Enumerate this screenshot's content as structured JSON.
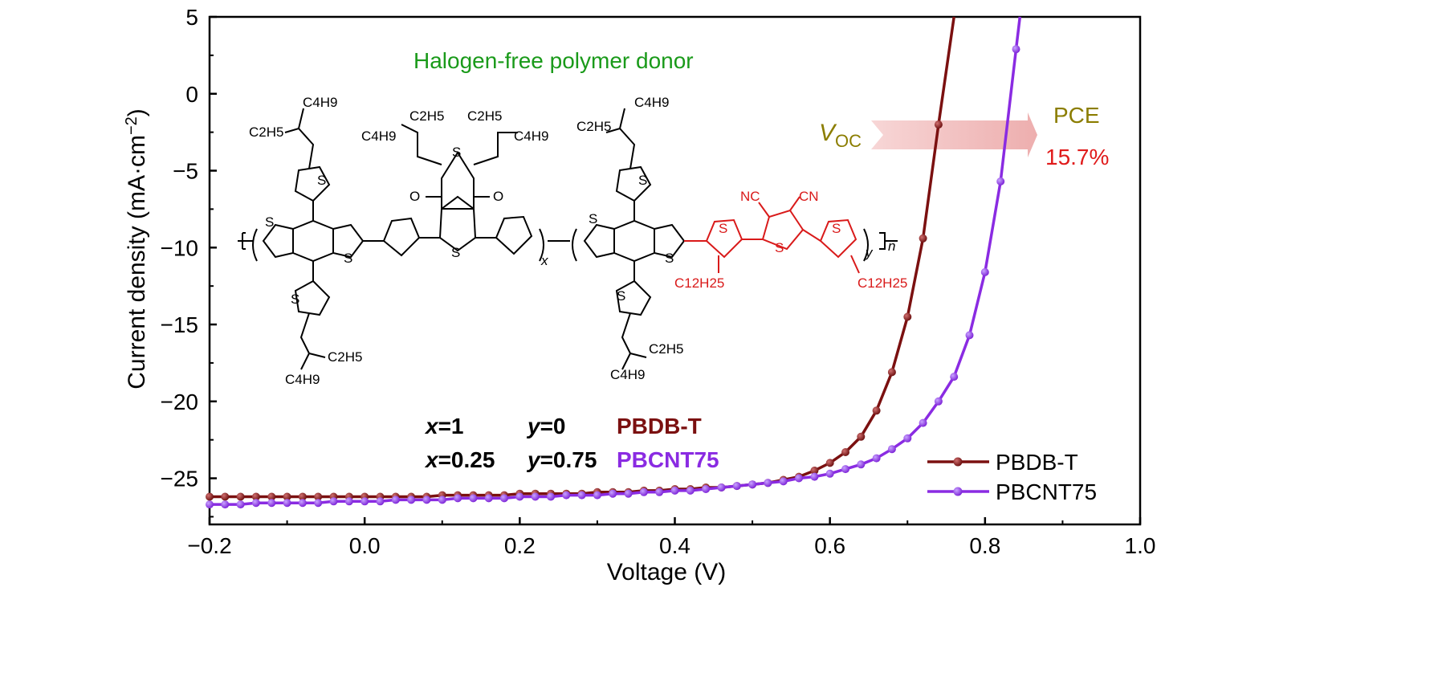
{
  "chart_data": {
    "type": "line",
    "xlabel": "Voltage (V)",
    "ylabel_main": "Current density (mA·cm",
    "ylabel_sup": "−2",
    "ylabel_close": ")",
    "xlim": [
      -0.2,
      1.0
    ],
    "ylim": [
      -28,
      5
    ],
    "x_ticks": [
      -0.2,
      0.0,
      0.2,
      0.4,
      0.6,
      0.8,
      1.0
    ],
    "x_tick_labels": [
      "−0.2",
      "0.0",
      "0.2",
      "0.4",
      "0.6",
      "0.8",
      "1.0"
    ],
    "y_ticks": [
      5,
      0,
      -5,
      -10,
      -15,
      -20,
      -25
    ],
    "y_tick_labels": [
      "5",
      "0",
      "−5",
      "−10",
      "−15",
      "−20",
      "−25"
    ],
    "grid": false,
    "legend_position": "bottom-right",
    "series": [
      {
        "name": "PBDB-T",
        "color": "#7b1010",
        "x": [
          -0.2,
          -0.18,
          -0.16,
          -0.14,
          -0.12,
          -0.1,
          -0.08,
          -0.06,
          -0.04,
          -0.02,
          0.0,
          0.02,
          0.04,
          0.06,
          0.08,
          0.1,
          0.12,
          0.14,
          0.16,
          0.18,
          0.2,
          0.22,
          0.24,
          0.26,
          0.28,
          0.3,
          0.32,
          0.34,
          0.36,
          0.38,
          0.4,
          0.42,
          0.44,
          0.46,
          0.48,
          0.5,
          0.52,
          0.54,
          0.56,
          0.58,
          0.6,
          0.62,
          0.64,
          0.66,
          0.68,
          0.7,
          0.72,
          0.74,
          0.76
        ],
        "y": [
          -26.2,
          -26.2,
          -26.2,
          -26.2,
          -26.2,
          -26.2,
          -26.2,
          -26.2,
          -26.2,
          -26.2,
          -26.2,
          -26.2,
          -26.2,
          -26.2,
          -26.2,
          -26.1,
          -26.1,
          -26.1,
          -26.1,
          -26.1,
          -26.0,
          -26.0,
          -26.0,
          -26.0,
          -26.0,
          -25.9,
          -25.9,
          -25.9,
          -25.8,
          -25.8,
          -25.7,
          -25.7,
          -25.6,
          -25.6,
          -25.5,
          -25.4,
          -25.3,
          -25.1,
          -24.9,
          -24.5,
          -24.0,
          -23.3,
          -22.3,
          -20.6,
          -18.1,
          -14.5,
          -9.4,
          -2.0,
          5.0
        ]
      },
      {
        "name": "PBCNT75",
        "color": "#8a2be2",
        "x": [
          -0.2,
          -0.18,
          -0.16,
          -0.14,
          -0.12,
          -0.1,
          -0.08,
          -0.06,
          -0.04,
          -0.02,
          0.0,
          0.02,
          0.04,
          0.06,
          0.08,
          0.1,
          0.12,
          0.14,
          0.16,
          0.18,
          0.2,
          0.22,
          0.24,
          0.26,
          0.28,
          0.3,
          0.32,
          0.34,
          0.36,
          0.38,
          0.4,
          0.42,
          0.44,
          0.46,
          0.48,
          0.5,
          0.52,
          0.54,
          0.56,
          0.58,
          0.6,
          0.62,
          0.64,
          0.66,
          0.68,
          0.7,
          0.72,
          0.74,
          0.76,
          0.78,
          0.8,
          0.82,
          0.84,
          0.845
        ],
        "y": [
          -26.7,
          -26.7,
          -26.7,
          -26.6,
          -26.6,
          -26.6,
          -26.6,
          -26.6,
          -26.5,
          -26.5,
          -26.5,
          -26.5,
          -26.4,
          -26.4,
          -26.4,
          -26.4,
          -26.3,
          -26.3,
          -26.3,
          -26.3,
          -26.2,
          -26.2,
          -26.2,
          -26.1,
          -26.1,
          -26.1,
          -26.0,
          -26.0,
          -25.9,
          -25.9,
          -25.8,
          -25.8,
          -25.7,
          -25.6,
          -25.5,
          -25.4,
          -25.3,
          -25.2,
          -25.0,
          -24.9,
          -24.7,
          -24.4,
          -24.1,
          -23.7,
          -23.1,
          -22.4,
          -21.4,
          -20.0,
          -18.4,
          -15.7,
          -11.6,
          -5.7,
          2.9,
          5.0
        ]
      }
    ],
    "annotations": {
      "title_text": "Halogen-free polymer donor",
      "voc_main": "V",
      "voc_sub": "OC",
      "pce_label": "PCE",
      "pce_value": "15.7%",
      "row1_x": "x",
      "row1_x_val": "=1",
      "row1_y": "y",
      "row1_y_val": "=0",
      "row1_name": "PBDB-T",
      "row2_x": "x",
      "row2_x_val": "=0.25",
      "row2_y": "y",
      "row2_y_val": "=0.75",
      "row2_name": "PBCNT75"
    }
  },
  "colors": {
    "pbdbt": "#7b1010",
    "pbcnt75": "#8a2be2",
    "title_green": "#1a9a1a",
    "voc_olive": "#8b7d00",
    "pce_red": "#e01b1b",
    "chem_red": "#d91a1a",
    "arrow_pink": "#f2b8b8"
  },
  "structure": {
    "c4h9": "C4H9",
    "c2h5": "C2H5",
    "c12h25": "C12H25",
    "s": "S",
    "o": "O",
    "nc": "NC",
    "cn": "CN",
    "sub_x": "x",
    "sub_y": "y",
    "sub_n": "n"
  }
}
